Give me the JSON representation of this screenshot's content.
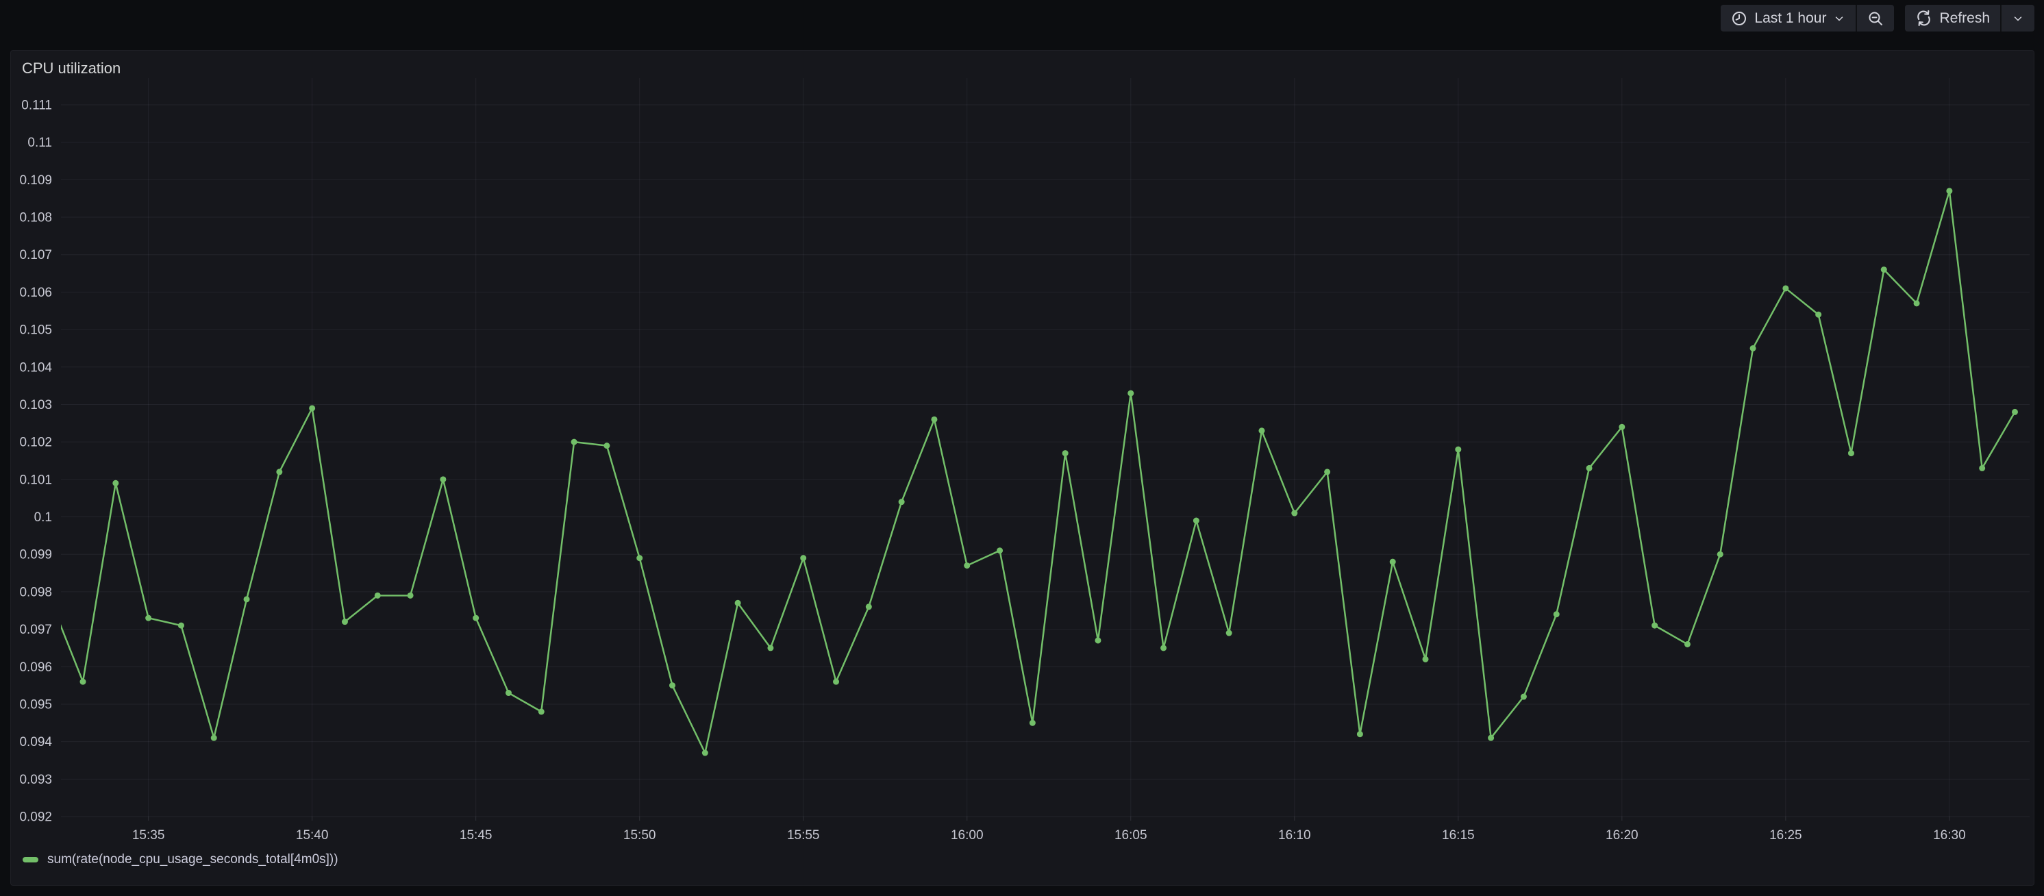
{
  "toolbar": {
    "time_picker_label": "Last 1 hour",
    "refresh_label": "Refresh"
  },
  "panel": {
    "title": "CPU utilization"
  },
  "colors": {
    "series_green": "#73bf69",
    "page_bg": "#0c0d10",
    "panel_bg": "#16171c",
    "grid": "rgba(204,204,220,0.07)",
    "axis_text": "#c8c9d3",
    "text_primary": "#d5d6de"
  },
  "chart_data": {
    "type": "line",
    "title": "CPU utilization",
    "xlabel": "",
    "ylabel": "",
    "grid": true,
    "legend_position": "bottom-left",
    "ylim": [
      0.092,
      0.111
    ],
    "y_tick_step": 0.001,
    "y_tick_labels": [
      "0.092",
      "0.093",
      "0.094",
      "0.095",
      "0.096",
      "0.097",
      "0.098",
      "0.099",
      "0.1",
      "0.101",
      "0.102",
      "0.103",
      "0.104",
      "0.105",
      "0.106",
      "0.107",
      "0.108",
      "0.109",
      "0.11",
      "0.111"
    ],
    "x_min_minutes": 32.33,
    "x_max_minutes": 92.45,
    "x_ticks": [
      {
        "m": 35,
        "label": "15:35"
      },
      {
        "m": 40,
        "label": "15:40"
      },
      {
        "m": 45,
        "label": "15:45"
      },
      {
        "m": 50,
        "label": "15:50"
      },
      {
        "m": 55,
        "label": "15:55"
      },
      {
        "m": 60,
        "label": "16:00"
      },
      {
        "m": 65,
        "label": "16:05"
      },
      {
        "m": 70,
        "label": "16:10"
      },
      {
        "m": 75,
        "label": "16:15"
      },
      {
        "m": 80,
        "label": "16:20"
      },
      {
        "m": 85,
        "label": "16:25"
      },
      {
        "m": 90,
        "label": "16:30"
      }
    ],
    "series": [
      {
        "name": "sum(rate(node_cpu_usage_seconds_total[4m0s]))",
        "color": "#73bf69",
        "points": [
          {
            "t": "15:32",
            "v": 0.0978
          },
          {
            "t": "15:33",
            "v": 0.0956
          },
          {
            "t": "15:34",
            "v": 0.1009
          },
          {
            "t": "15:35",
            "v": 0.0973
          },
          {
            "t": "15:36",
            "v": 0.0971
          },
          {
            "t": "15:37",
            "v": 0.0941
          },
          {
            "t": "15:38",
            "v": 0.0978
          },
          {
            "t": "15:39",
            "v": 0.1012
          },
          {
            "t": "15:40",
            "v": 0.1029
          },
          {
            "t": "15:41",
            "v": 0.0972
          },
          {
            "t": "15:42",
            "v": 0.0979
          },
          {
            "t": "15:43",
            "v": 0.0979
          },
          {
            "t": "15:44",
            "v": 0.101
          },
          {
            "t": "15:45",
            "v": 0.0973
          },
          {
            "t": "15:46",
            "v": 0.0953
          },
          {
            "t": "15:47",
            "v": 0.0948
          },
          {
            "t": "15:48",
            "v": 0.102
          },
          {
            "t": "15:49",
            "v": 0.1019
          },
          {
            "t": "15:50",
            "v": 0.0989
          },
          {
            "t": "15:51",
            "v": 0.0955
          },
          {
            "t": "15:52",
            "v": 0.0937
          },
          {
            "t": "15:53",
            "v": 0.0977
          },
          {
            "t": "15:54",
            "v": 0.0965
          },
          {
            "t": "15:55",
            "v": 0.0989
          },
          {
            "t": "15:56",
            "v": 0.0956
          },
          {
            "t": "15:57",
            "v": 0.0976
          },
          {
            "t": "15:58",
            "v": 0.1004
          },
          {
            "t": "15:59",
            "v": 0.1026
          },
          {
            "t": "16:00",
            "v": 0.0987
          },
          {
            "t": "16:01",
            "v": 0.0991
          },
          {
            "t": "16:02",
            "v": 0.0945
          },
          {
            "t": "16:03",
            "v": 0.1017
          },
          {
            "t": "16:04",
            "v": 0.0967
          },
          {
            "t": "16:05",
            "v": 0.1033
          },
          {
            "t": "16:06",
            "v": 0.0965
          },
          {
            "t": "16:07",
            "v": 0.0999
          },
          {
            "t": "16:08",
            "v": 0.0969
          },
          {
            "t": "16:09",
            "v": 0.1023
          },
          {
            "t": "16:10",
            "v": 0.1001
          },
          {
            "t": "16:11",
            "v": 0.1012
          },
          {
            "t": "16:12",
            "v": 0.0942
          },
          {
            "t": "16:13",
            "v": 0.0988
          },
          {
            "t": "16:14",
            "v": 0.0962
          },
          {
            "t": "16:15",
            "v": 0.1018
          },
          {
            "t": "16:16",
            "v": 0.0941
          },
          {
            "t": "16:17",
            "v": 0.0952
          },
          {
            "t": "16:18",
            "v": 0.0974
          },
          {
            "t": "16:19",
            "v": 0.1013
          },
          {
            "t": "16:20",
            "v": 0.1024
          },
          {
            "t": "16:21",
            "v": 0.0971
          },
          {
            "t": "16:22",
            "v": 0.0966
          },
          {
            "t": "16:23",
            "v": 0.099
          },
          {
            "t": "16:24",
            "v": 0.1045
          },
          {
            "t": "16:25",
            "v": 0.1061
          },
          {
            "t": "16:26",
            "v": 0.1054
          },
          {
            "t": "16:27",
            "v": 0.1017
          },
          {
            "t": "16:28",
            "v": 0.1066
          },
          {
            "t": "16:29",
            "v": 0.1057
          },
          {
            "t": "16:30",
            "v": 0.1087
          },
          {
            "t": "16:31",
            "v": 0.1013
          },
          {
            "t": "16:32",
            "v": 0.1028
          }
        ]
      }
    ]
  }
}
